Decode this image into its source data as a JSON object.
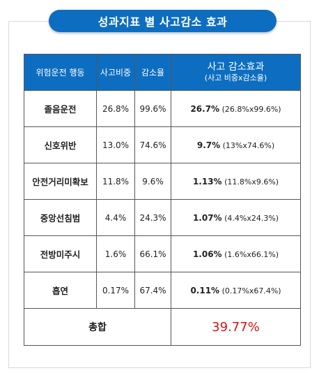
{
  "title": "성과지표 별 사고감소 효과",
  "headers": {
    "behavior": "위험운전 행동",
    "accident_share": "사고비중",
    "reduction_rate": "감소율",
    "effect_main": "사고 감소효과",
    "effect_sub": "(사고 비중x감소율)"
  },
  "rows": [
    {
      "behavior": "졸음운전",
      "accident_share": "26.8%",
      "reduction_rate": "99.6%",
      "effect": "26.7%",
      "calc": "(26.8%x99.6%)"
    },
    {
      "behavior": "신호위반",
      "accident_share": "13.0%",
      "reduction_rate": "74.6%",
      "effect": "9.7%",
      "calc": "(13%x74.6%)"
    },
    {
      "behavior": "안전거리미확보",
      "accident_share": "11.8%",
      "reduction_rate": "9.6%",
      "effect": "1.13%",
      "calc": "(11.8%x9.6%)"
    },
    {
      "behavior": "중앙선침범",
      "accident_share": "4.4%",
      "reduction_rate": "24.3%",
      "effect": "1.07%",
      "calc": "(4.4%x24.3%)"
    },
    {
      "behavior": "전방미주시",
      "accident_share": "1.6%",
      "reduction_rate": "66.1%",
      "effect": "1.06%",
      "calc": "(1.6%x66.1%)"
    },
    {
      "behavior": "흡연",
      "accident_share": "0.17%",
      "reduction_rate": "67.4%",
      "effect": "0.11%",
      "calc": "(0.17%x67.4%)"
    }
  ],
  "total": {
    "label": "총합",
    "value": "39.77%"
  },
  "colors": {
    "header_blue": "#0d6ec1",
    "total_red": "#e01010"
  }
}
